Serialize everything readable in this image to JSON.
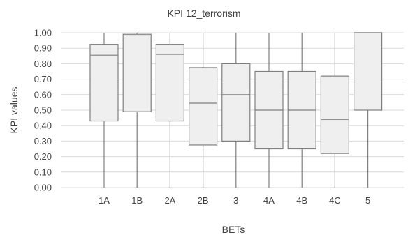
{
  "chart_data": {
    "type": "box",
    "title": "KPI 12_terrorism",
    "xlabel": "BETs",
    "ylabel": "KPI values",
    "ylim": [
      0,
      1
    ],
    "y_ticks": [
      "0.00",
      "0.10",
      "0.20",
      "0.30",
      "0.40",
      "0.50",
      "0.60",
      "0.70",
      "0.80",
      "0.90",
      "1.00"
    ],
    "grid": true,
    "categories": [
      "1A",
      "1B",
      "2A",
      "2B",
      "3",
      "4A",
      "4B",
      "4C",
      "5"
    ],
    "boxes": [
      {
        "min": 0,
        "q1": 0.43,
        "median": 0.855,
        "q3": 0.925,
        "max": 1
      },
      {
        "min": 0,
        "q1": 0.49,
        "median": 0.98,
        "q3": 0.99,
        "max": 1
      },
      {
        "min": 0,
        "q1": 0.43,
        "median": 0.86,
        "q3": 0.925,
        "max": 1
      },
      {
        "min": 0,
        "q1": 0.275,
        "median": 0.545,
        "q3": 0.775,
        "max": 1
      },
      {
        "min": 0,
        "q1": 0.3,
        "median": 0.6,
        "q3": 0.8,
        "max": 1
      },
      {
        "min": 0,
        "q1": 0.25,
        "median": 0.5,
        "q3": 0.75,
        "max": 1
      },
      {
        "min": 0,
        "q1": 0.25,
        "median": 0.5,
        "q3": 0.75,
        "max": 1
      },
      {
        "min": 0,
        "q1": 0.22,
        "median": 0.44,
        "q3": 0.72,
        "max": 1
      },
      {
        "min": 0,
        "q1": 0.5,
        "median": 1.0,
        "q3": 1.0,
        "max": 1
      }
    ],
    "colors": {
      "box_fill": "#efefef",
      "box_stroke": "#7f7f7f",
      "grid": "#d9d9d9",
      "text": "#404040"
    }
  }
}
